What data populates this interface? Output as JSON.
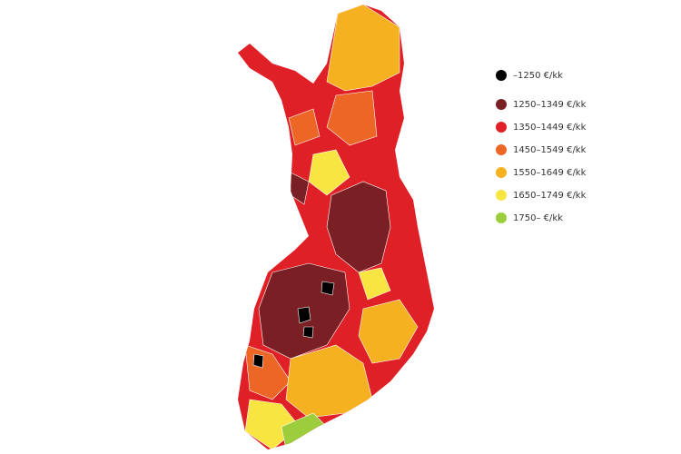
{
  "legend": {
    "items": [
      {
        "label": "–1250 €/kk",
        "color": "#000000"
      },
      {
        "label": "1250–1349 €/kk",
        "color": "#7a2024"
      },
      {
        "label": "1350–1449 €/kk",
        "color": "#e02027"
      },
      {
        "label": "1450–1549 €/kk",
        "color": "#ec6625"
      },
      {
        "label": "1550–1649 €/kk",
        "color": "#f5b120"
      },
      {
        "label": "1650–1749 €/kk",
        "color": "#f8e542"
      },
      {
        "label": "1750– €/kk",
        "color": "#9ccd3c"
      }
    ]
  }
}
